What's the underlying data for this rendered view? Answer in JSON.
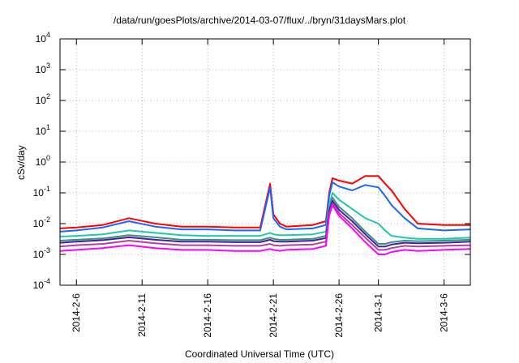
{
  "chart_data": {
    "type": "line",
    "title": "/data/run/goesPlots/archive/2014-03-07/flux/../bryn/31daysMars.plot",
    "xlabel": "Coordinated Universal Time (UTC)",
    "ylabel": "cSv/day",
    "yscale": "log",
    "ylim": [
      0.0001,
      10000
    ],
    "xlim": [
      "2014-02-04T18:00",
      "2014-03-08T00:00"
    ],
    "grid": true,
    "x_ticks": [
      "2014-2-6",
      "2014-2-11",
      "2014-2-16",
      "2014-2-21",
      "2014-2-26",
      "2014-3-1",
      "2014-3-6"
    ],
    "y_ticks": [
      {
        "value": 0.0001,
        "base": "10",
        "exp": "-4"
      },
      {
        "value": 0.001,
        "base": "10",
        "exp": "-3"
      },
      {
        "value": 0.01,
        "base": "10",
        "exp": "-2"
      },
      {
        "value": 0.1,
        "base": "10",
        "exp": "-1"
      },
      {
        "value": 1,
        "base": "10",
        "exp": "0"
      },
      {
        "value": 10,
        "base": "10",
        "exp": "1"
      },
      {
        "value": 100,
        "base": "10",
        "exp": "2"
      },
      {
        "value": 1000,
        "base": "10",
        "exp": "3"
      },
      {
        "value": 10000,
        "base": "10",
        "exp": "4"
      }
    ],
    "x": [
      "2014-02-04T18:00",
      "2014-02-06",
      "2014-02-08",
      "2014-02-10",
      "2014-02-12",
      "2014-02-14",
      "2014-02-16",
      "2014-02-18",
      "2014-02-20",
      "2014-02-20T18:00",
      "2014-02-21",
      "2014-02-21T12:00",
      "2014-02-22",
      "2014-02-24",
      "2014-02-25",
      "2014-02-25T06:00",
      "2014-02-25T12:00",
      "2014-02-26",
      "2014-02-27",
      "2014-02-28",
      "2014-03-01",
      "2014-03-01T12:00",
      "2014-03-02",
      "2014-03-03",
      "2014-03-04",
      "2014-03-06",
      "2014-03-08"
    ],
    "series": [
      {
        "color": "#ff0000",
        "values": [
          0.007,
          0.0075,
          0.009,
          0.015,
          0.01,
          0.008,
          0.008,
          0.0075,
          0.0075,
          0.2,
          0.02,
          0.01,
          0.008,
          0.009,
          0.012,
          0.1,
          0.3,
          0.25,
          0.2,
          0.35,
          0.35,
          0.2,
          0.12,
          0.03,
          0.01,
          0.009,
          0.009
        ]
      },
      {
        "color": "#1a66ff",
        "values": [
          0.0055,
          0.006,
          0.0075,
          0.012,
          0.008,
          0.0065,
          0.0065,
          0.006,
          0.006,
          0.15,
          0.015,
          0.008,
          0.0065,
          0.007,
          0.009,
          0.08,
          0.22,
          0.16,
          0.12,
          0.18,
          0.15,
          0.08,
          0.04,
          0.015,
          0.007,
          0.006,
          0.0065
        ]
      },
      {
        "color": "#20c8a8",
        "values": [
          0.0038,
          0.004,
          0.0045,
          0.006,
          0.005,
          0.0042,
          0.004,
          0.004,
          0.004,
          0.005,
          0.0045,
          0.0042,
          0.0042,
          0.0045,
          0.0055,
          0.04,
          0.1,
          0.06,
          0.03,
          0.015,
          0.01,
          0.006,
          0.004,
          0.0035,
          0.0032,
          0.0032,
          0.0035
        ]
      },
      {
        "color": "#3d8f7a",
        "values": [
          0.0028,
          0.003,
          0.0033,
          0.0042,
          0.0036,
          0.003,
          0.003,
          0.0029,
          0.0029,
          0.0035,
          0.0032,
          0.003,
          0.003,
          0.0032,
          0.004,
          0.03,
          0.07,
          0.035,
          0.015,
          0.0055,
          0.0022,
          0.0022,
          0.0025,
          0.0028,
          0.0027,
          0.0028,
          0.003
        ]
      },
      {
        "color": "#4020a0",
        "values": [
          0.0024,
          0.0026,
          0.0029,
          0.0036,
          0.003,
          0.0026,
          0.0026,
          0.0025,
          0.0025,
          0.003,
          0.0027,
          0.0026,
          0.0026,
          0.0028,
          0.0034,
          0.025,
          0.055,
          0.028,
          0.012,
          0.0045,
          0.0018,
          0.0018,
          0.0021,
          0.0024,
          0.0023,
          0.0024,
          0.0026
        ]
      },
      {
        "color": "#b040a0",
        "values": [
          0.0018,
          0.002,
          0.0022,
          0.0028,
          0.0023,
          0.002,
          0.002,
          0.0019,
          0.0019,
          0.0022,
          0.002,
          0.0019,
          0.002,
          0.0021,
          0.0026,
          0.02,
          0.045,
          0.022,
          0.009,
          0.0035,
          0.0014,
          0.0014,
          0.0016,
          0.0019,
          0.0018,
          0.0019,
          0.002
        ]
      },
      {
        "color": "#ff00ff",
        "values": [
          0.0013,
          0.0014,
          0.0016,
          0.002,
          0.0016,
          0.0014,
          0.0014,
          0.0013,
          0.0013,
          0.0015,
          0.0014,
          0.0013,
          0.0014,
          0.0015,
          0.0019,
          0.018,
          0.04,
          0.018,
          0.007,
          0.0025,
          0.001,
          0.001,
          0.0012,
          0.0014,
          0.0013,
          0.0014,
          0.0015
        ]
      }
    ]
  }
}
